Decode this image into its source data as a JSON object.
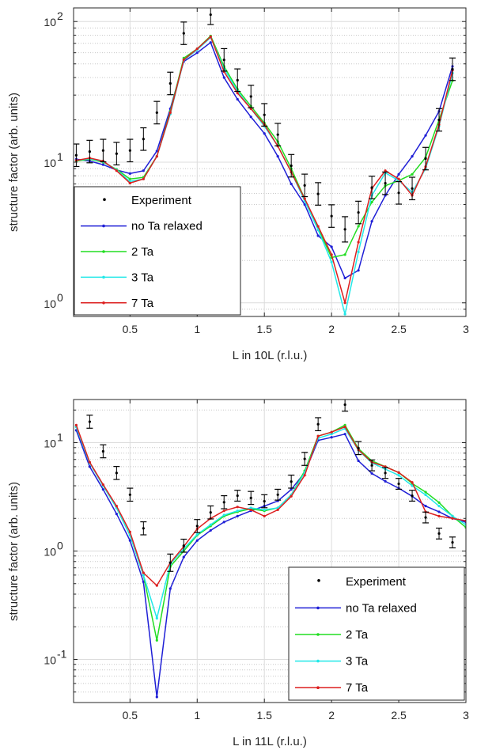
{
  "chart_data": [
    {
      "type": "line",
      "xlabel": "L in 10L (r.l.u.)",
      "ylabel": "structure factor (arb. units)",
      "yscale": "log",
      "xlim": [
        0.08,
        3.0
      ],
      "ylim": [
        0.8,
        125
      ],
      "xticks": [
        0.5,
        1,
        1.5,
        2,
        2.5,
        3
      ],
      "xticklabels": [
        "0.5",
        "1",
        "1.5",
        "2",
        "2.5",
        "3"
      ],
      "yticks": [
        1,
        10,
        100
      ],
      "yticklabels": [
        {
          "base": "10",
          "exp": "0"
        },
        {
          "base": "10",
          "exp": "1"
        },
        {
          "base": "10",
          "exp": "2"
        }
      ],
      "grid": true,
      "legend_position": "bottom-left",
      "experiment": {
        "name": "Experiment",
        "x": [
          0.1,
          0.2,
          0.3,
          0.4,
          0.5,
          0.6,
          0.7,
          0.8,
          0.9,
          1.1,
          1.2,
          1.3,
          1.4,
          1.5,
          1.6,
          1.7,
          1.8,
          1.9,
          2.0,
          2.1,
          2.2,
          2.3,
          2.4,
          2.5,
          2.6,
          2.7,
          2.8,
          2.9
        ],
        "y": [
          11.2,
          11.9,
          12.1,
          11.5,
          12.1,
          14.6,
          22.5,
          36.3,
          82.5,
          111.9,
          53.4,
          38.3,
          29.3,
          21.7,
          15.7,
          9.43,
          6.84,
          5.95,
          4.14,
          3.33,
          4.39,
          6.61,
          7.08,
          6.05,
          6.5,
          10.6,
          20.0,
          45.8
        ],
        "err": [
          0.08,
          0.08,
          0.08,
          0.08,
          0.08,
          0.08,
          0.08,
          0.08,
          0.08,
          0.07,
          0.08,
          0.08,
          0.08,
          0.08,
          0.08,
          0.08,
          0.08,
          0.08,
          0.08,
          0.09,
          0.08,
          0.08,
          0.08,
          0.08,
          0.08,
          0.08,
          0.08,
          0.08
        ]
      },
      "x": [
        0.1,
        0.2,
        0.3,
        0.4,
        0.5,
        0.6,
        0.7,
        0.8,
        0.9,
        1.0,
        1.1,
        1.2,
        1.3,
        1.4,
        1.5,
        1.6,
        1.7,
        1.8,
        1.9,
        2.0,
        2.1,
        2.2,
        2.3,
        2.4,
        2.5,
        2.6,
        2.7,
        2.8,
        2.9
      ],
      "series": [
        {
          "name": "no Ta relaxed",
          "color": "#1f1fd6",
          "values": [
            10.5,
            10.2,
            9.6,
            8.8,
            8.3,
            8.7,
            12.0,
            24.0,
            52.0,
            60.0,
            71.0,
            40.0,
            28.0,
            21.0,
            16.0,
            11.0,
            7.0,
            5.0,
            3.0,
            2.5,
            1.5,
            1.7,
            3.8,
            5.8,
            8.2,
            11.0,
            15.5,
            23.0,
            48.0
          ]
        },
        {
          "name": "2 Ta",
          "color": "#22dd22",
          "values": [
            10.2,
            10.5,
            10.0,
            8.9,
            7.6,
            7.8,
            11.0,
            23.0,
            55.0,
            64.0,
            79.0,
            48.0,
            33.0,
            25.0,
            19.0,
            14.0,
            9.0,
            5.5,
            3.4,
            2.1,
            2.2,
            3.5,
            5.2,
            6.8,
            7.4,
            8.2,
            10.8,
            20.0,
            38.0
          ]
        },
        {
          "name": "3 Ta",
          "color": "#22e8e8",
          "values": [
            10.3,
            10.6,
            10.1,
            8.8,
            7.3,
            7.6,
            11.0,
            22.0,
            53.0,
            63.0,
            77.0,
            46.0,
            32.0,
            24.0,
            18.0,
            13.0,
            8.5,
            5.3,
            3.3,
            1.95,
            0.83,
            2.3,
            5.8,
            8.4,
            7.4,
            6.1,
            9.0,
            18.0,
            43.0
          ]
        },
        {
          "name": "7 Ta",
          "color": "#dd1f1f",
          "values": [
            10.3,
            10.7,
            10.2,
            8.7,
            7.1,
            7.6,
            11.0,
            22.5,
            53.5,
            64.0,
            78.0,
            44.0,
            31.0,
            24.0,
            18.5,
            13.0,
            8.5,
            5.5,
            3.5,
            2.2,
            1.0,
            2.7,
            6.5,
            8.7,
            7.6,
            5.8,
            9.3,
            18.5,
            45.0
          ]
        }
      ]
    },
    {
      "type": "line",
      "xlabel": "L in 11L (r.l.u.)",
      "ylabel": "structure factor (arb. units)",
      "yscale": "log",
      "xlim": [
        0.08,
        3.0
      ],
      "ylim": [
        0.04,
        25
      ],
      "xticks": [
        0.5,
        1,
        1.5,
        2,
        2.5,
        3
      ],
      "xticklabels": [
        "0.5",
        "1",
        "1.5",
        "2",
        "2.5",
        "3"
      ],
      "yticks": [
        0.1,
        1,
        10
      ],
      "yticklabels": [
        {
          "base": "10",
          "exp": "-1"
        },
        {
          "base": "10",
          "exp": "0"
        },
        {
          "base": "10",
          "exp": "1"
        }
      ],
      "grid": true,
      "legend_position": "bottom-right",
      "experiment": {
        "name": "Experiment",
        "x": [
          0.2,
          0.3,
          0.4,
          0.5,
          0.6,
          0.8,
          0.9,
          1.0,
          1.1,
          1.2,
          1.3,
          1.4,
          1.5,
          1.6,
          1.7,
          1.8,
          1.9,
          2.1,
          2.2,
          2.3,
          2.4,
          2.5,
          2.6,
          2.7,
          2.8,
          2.9
        ],
        "y": [
          15.6,
          8.32,
          5.25,
          3.31,
          1.62,
          0.78,
          1.12,
          1.7,
          2.27,
          2.82,
          3.24,
          3.09,
          2.88,
          3.31,
          4.37,
          7.08,
          14.8,
          22.4,
          8.91,
          6.17,
          5.25,
          4.17,
          3.24,
          2.04,
          1.45,
          1.2
        ],
        "err": [
          0.06,
          0.06,
          0.06,
          0.06,
          0.06,
          0.08,
          0.06,
          0.06,
          0.06,
          0.06,
          0.05,
          0.06,
          0.06,
          0.05,
          0.06,
          0.06,
          0.06,
          0.06,
          0.06,
          0.05,
          0.05,
          0.05,
          0.05,
          0.05,
          0.05,
          0.05
        ]
      },
      "x": [
        0.1,
        0.2,
        0.3,
        0.4,
        0.5,
        0.6,
        0.7,
        0.8,
        0.9,
        1.0,
        1.1,
        1.2,
        1.3,
        1.4,
        1.5,
        1.6,
        1.7,
        1.8,
        1.9,
        2.0,
        2.1,
        2.2,
        2.3,
        2.4,
        2.5,
        2.6,
        2.7,
        2.8,
        2.9,
        3.0
      ],
      "series": [
        {
          "name": "no Ta relaxed",
          "color": "#1f1fd6",
          "values": [
            13.0,
            6.0,
            3.7,
            2.2,
            1.25,
            0.52,
            0.045,
            0.45,
            0.88,
            1.25,
            1.55,
            1.85,
            2.1,
            2.35,
            2.6,
            2.9,
            3.7,
            5.3,
            10.5,
            11.2,
            12.0,
            6.8,
            5.2,
            4.4,
            3.8,
            3.2,
            2.6,
            2.3,
            2.0,
            1.85
          ]
        },
        {
          "name": "2 Ta",
          "color": "#22dd22",
          "values": [
            14.0,
            6.5,
            4.0,
            2.5,
            1.4,
            0.6,
            0.15,
            0.72,
            1.0,
            1.4,
            1.7,
            2.1,
            2.3,
            2.45,
            2.35,
            2.5,
            3.3,
            5.5,
            11.5,
            12.5,
            14.5,
            8.8,
            6.8,
            6.0,
            5.3,
            4.2,
            3.5,
            2.8,
            2.1,
            1.65
          ]
        },
        {
          "name": "3 Ta",
          "color": "#22e8e8",
          "values": [
            14.0,
            6.5,
            4.0,
            2.5,
            1.4,
            0.6,
            0.24,
            0.76,
            1.05,
            1.42,
            1.75,
            2.15,
            2.35,
            2.5,
            2.4,
            2.5,
            3.3,
            5.3,
            11.0,
            12.0,
            13.5,
            8.5,
            6.5,
            5.7,
            5.0,
            4.0,
            3.3,
            2.6,
            2.1,
            1.75
          ]
        },
        {
          "name": "7 Ta",
          "color": "#dd1f1f",
          "values": [
            14.5,
            6.6,
            4.1,
            2.6,
            1.5,
            0.63,
            0.48,
            0.78,
            1.1,
            1.6,
            2.0,
            2.35,
            2.55,
            2.4,
            2.1,
            2.4,
            3.2,
            5.0,
            11.5,
            12.5,
            14.0,
            8.6,
            6.6,
            6.0,
            5.3,
            4.3,
            2.3,
            2.1,
            2.0,
            1.9
          ]
        }
      ]
    }
  ]
}
